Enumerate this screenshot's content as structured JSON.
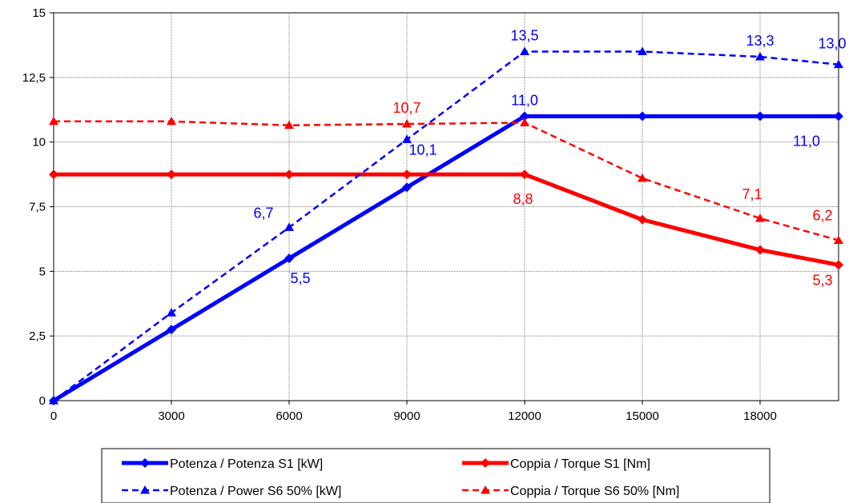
{
  "chart_data": {
    "type": "line",
    "title": "",
    "xlabel": "",
    "ylabel": "",
    "xlim": [
      0,
      20000
    ],
    "ylim": [
      0,
      15
    ],
    "grid": true,
    "legend_position": "bottom",
    "x_ticks": [
      "0",
      "3000",
      "6000",
      "9000",
      "12000",
      "15000",
      "18000"
    ],
    "x_tick_values": [
      0,
      3000,
      6000,
      9000,
      12000,
      15000,
      18000
    ],
    "y_ticks": [
      "0",
      "2,5",
      "5",
      "7,5",
      "10",
      "12,5",
      "15"
    ],
    "y_tick_values": [
      0,
      2.5,
      5,
      7.5,
      10,
      12.5,
      15
    ],
    "series": [
      {
        "name": "Potenza / Potenza S1 [kW]",
        "color": "#0000FF",
        "style": "solid",
        "marker": "diamond",
        "x": [
          0,
          3000,
          6000,
          9000,
          12000,
          15000,
          18000,
          20000
        ],
        "y": [
          0,
          2.75,
          5.5,
          8.25,
          11.0,
          11.0,
          11.0,
          11.0
        ]
      },
      {
        "name": "Coppia / Torque S1 [Nm]",
        "color": "#FF0000",
        "style": "solid",
        "marker": "diamond",
        "x": [
          0,
          3000,
          6000,
          9000,
          12000,
          15000,
          18000,
          20000
        ],
        "y": [
          8.75,
          8.75,
          8.75,
          8.75,
          8.75,
          7.0,
          5.83,
          5.25
        ]
      },
      {
        "name": "Potenza / Power S6 50% [kW]",
        "color": "#0000FF",
        "style": "dashed",
        "marker": "triangle",
        "x": [
          0,
          3000,
          6000,
          9000,
          12000,
          15000,
          18000,
          20000
        ],
        "y": [
          0,
          3.4,
          6.7,
          10.1,
          13.5,
          13.5,
          13.3,
          13.0
        ]
      },
      {
        "name": "Coppia / Torque S6 50% [Nm]",
        "color": "#FF0000",
        "style": "dashed",
        "marker": "triangle",
        "x": [
          0,
          3000,
          6000,
          9000,
          12000,
          15000,
          18000,
          20000
        ],
        "y": [
          10.8,
          10.8,
          10.65,
          10.7,
          10.75,
          8.6,
          7.05,
          6.2
        ]
      }
    ],
    "annotations": [
      {
        "text": "13,5",
        "x": 12000,
        "y": 13.5,
        "color": "#0000FF"
      },
      {
        "text": "13,3",
        "x": 18000,
        "y": 13.3,
        "color": "#0000FF"
      },
      {
        "text": "13,0",
        "x": 20000,
        "y": 13.0,
        "color": "#0000FF"
      },
      {
        "text": "10,7",
        "x": 9000,
        "y": 10.7,
        "color": "#FF0000"
      },
      {
        "text": "11,0",
        "x": 12000,
        "y": 11.0,
        "color": "#0000FF"
      },
      {
        "text": "10,1",
        "x": 9000,
        "y": 10.1,
        "color": "#0000FF"
      },
      {
        "text": "11,0",
        "x": 20000,
        "y": 11.0,
        "color": "#0000FF"
      },
      {
        "text": "6,7",
        "x": 6000,
        "y": 6.7,
        "color": "#0000FF"
      },
      {
        "text": "8,8",
        "x": 12000,
        "y": 8.75,
        "color": "#FF0000"
      },
      {
        "text": "7,1",
        "x": 18000,
        "y": 7.05,
        "color": "#FF0000"
      },
      {
        "text": "6,2",
        "x": 20000,
        "y": 6.2,
        "color": "#FF0000"
      },
      {
        "text": "5,5",
        "x": 6000,
        "y": 5.5,
        "color": "#0000FF"
      },
      {
        "text": "5,3",
        "x": 20000,
        "y": 5.25,
        "color": "#FF0000"
      }
    ]
  }
}
